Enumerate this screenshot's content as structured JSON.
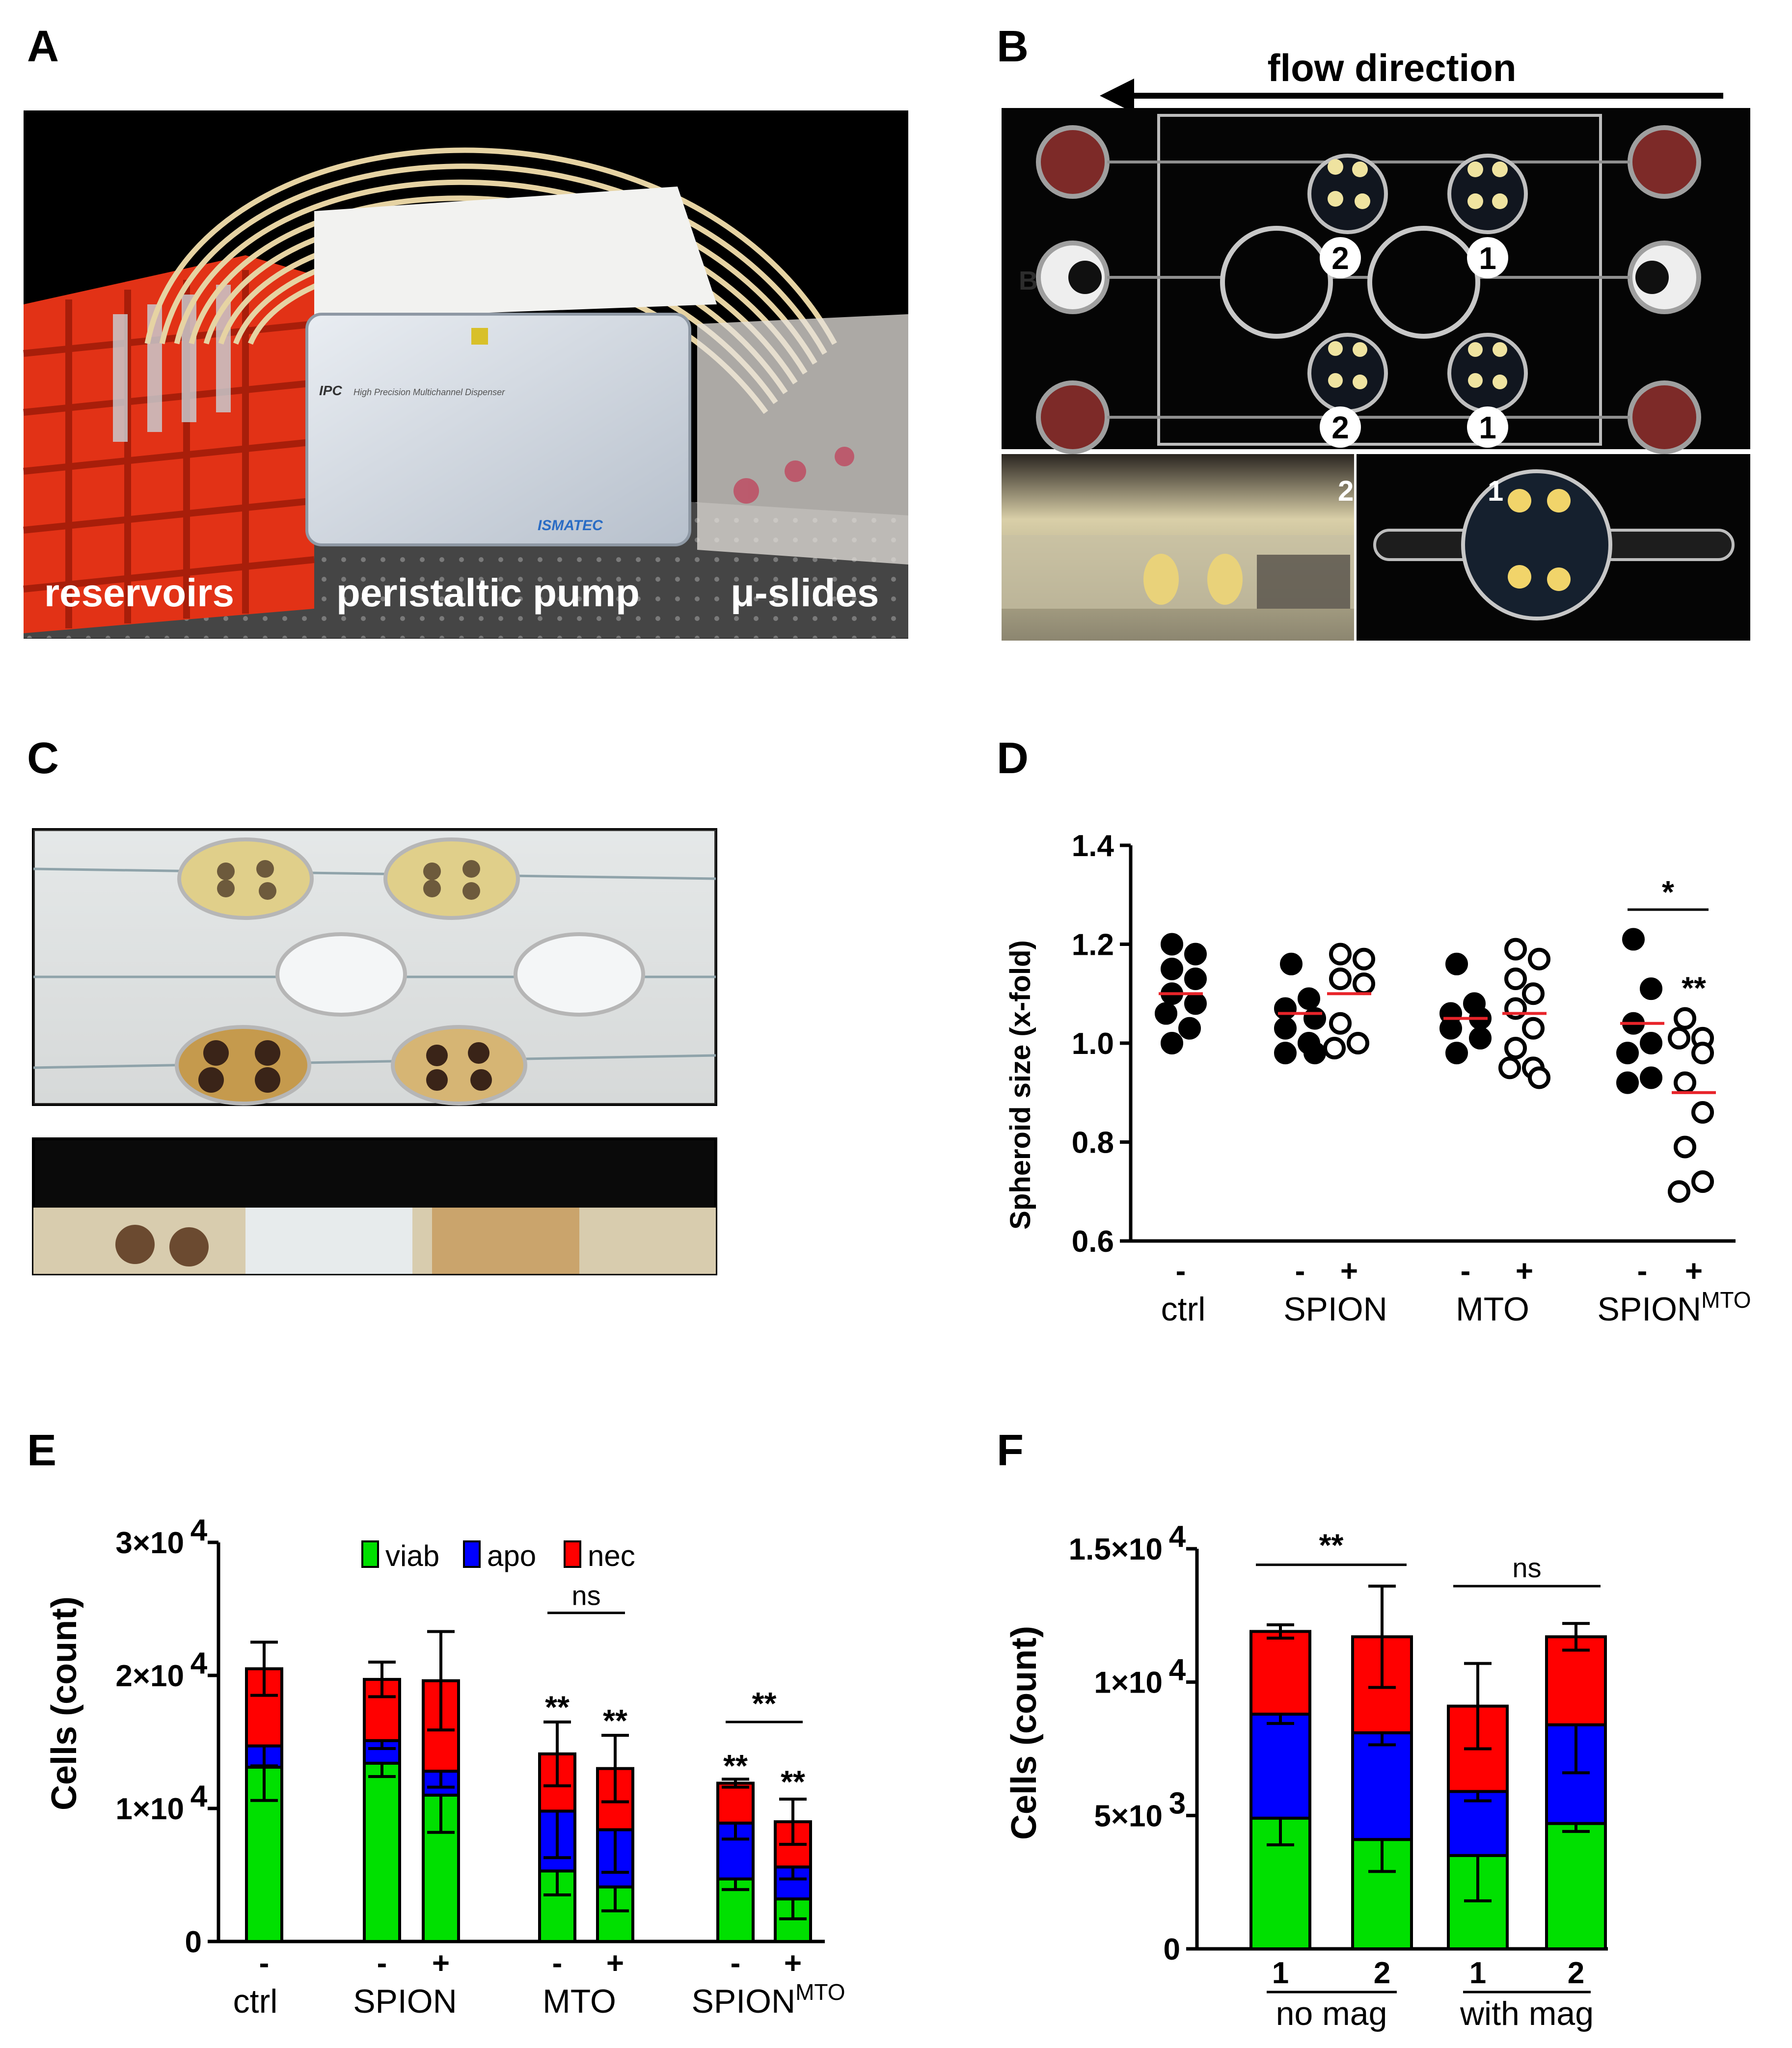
{
  "panels": {
    "A": {
      "label": "A",
      "captions": [
        "reservoirs",
        "peristaltic pump",
        "μ-slides"
      ],
      "pump_brand": "ISMATEC",
      "pump_model": "IPC",
      "pump_desc": "High Precision Multichannel Dispenser"
    },
    "B": {
      "label": "B",
      "flow_label": "flow direction",
      "channel_numbers": [
        "2",
        "1",
        "2",
        "1"
      ],
      "inset_numbers": [
        "2",
        "1"
      ],
      "row_letter": "B"
    },
    "C": {
      "label": "C"
    },
    "D": {
      "label": "D"
    },
    "E": {
      "label": "E"
    },
    "F": {
      "label": "F"
    }
  },
  "colors": {
    "viab": "#00e000",
    "apo": "#0000ff",
    "nec": "#ff0000",
    "mean": "#e8242a"
  },
  "chart_data": [
    {
      "id": "D",
      "type": "scatter",
      "ylabel": "Spheroid size (x-fold)",
      "ylim": [
        0.6,
        1.4
      ],
      "yticks": [
        "0.6",
        "0.8",
        "1.0",
        "1.2",
        "1.4"
      ],
      "groups": [
        {
          "label": "ctrl",
          "sup": ""
        },
        {
          "label": "SPION",
          "sup": ""
        },
        {
          "label": "MTO",
          "sup": ""
        },
        {
          "label": "SPION",
          "sup": "MTO"
        }
      ],
      "sub_labels": [
        "-",
        "-",
        "+",
        "-",
        "+",
        "-",
        "+"
      ],
      "series": [
        {
          "group": 0,
          "sign": "-",
          "filled": true,
          "mean": 1.1,
          "values": [
            1.2,
            1.18,
            1.15,
            1.13,
            1.1,
            1.08,
            1.06,
            1.03,
            1.0
          ]
        },
        {
          "group": 1,
          "sign": "-",
          "filled": true,
          "mean": 1.06,
          "values": [
            1.16,
            1.09,
            1.07,
            1.05,
            1.03,
            1.0,
            0.98,
            0.98
          ]
        },
        {
          "group": 1,
          "sign": "+",
          "filled": false,
          "mean": 1.1,
          "values": [
            1.18,
            1.17,
            1.13,
            1.12,
            1.04,
            1.0,
            0.99
          ]
        },
        {
          "group": 2,
          "sign": "-",
          "filled": true,
          "mean": 1.05,
          "values": [
            1.16,
            1.08,
            1.06,
            1.05,
            1.03,
            1.01,
            0.98
          ]
        },
        {
          "group": 2,
          "sign": "+",
          "filled": false,
          "mean": 1.06,
          "values": [
            1.19,
            1.17,
            1.13,
            1.1,
            1.07,
            1.03,
            0.99,
            0.95,
            0.95,
            0.93
          ]
        },
        {
          "group": 3,
          "sign": "-",
          "filled": true,
          "mean": 1.04,
          "values": [
            1.21,
            1.11,
            1.04,
            1.0,
            0.98,
            0.93,
            0.92
          ]
        },
        {
          "group": 3,
          "sign": "+",
          "filled": false,
          "mean": 0.9,
          "values": [
            1.05,
            1.01,
            1.01,
            0.98,
            0.92,
            0.86,
            0.79,
            0.72,
            0.7
          ]
        }
      ],
      "annotations": [
        {
          "text": "*",
          "type": "bracket",
          "from": 5,
          "to": 6,
          "y": 1.27
        },
        {
          "text": "**",
          "type": "mark",
          "at": 6,
          "y": 1.09
        }
      ]
    },
    {
      "id": "E",
      "type": "bar",
      "stacked": true,
      "ylabel": "Cells (count)",
      "ylim": [
        0,
        30000
      ],
      "yticks": [
        {
          "v": 0,
          "mant": "0",
          "exp": ""
        },
        {
          "v": 10000,
          "mant": "1×10",
          "exp": "4"
        },
        {
          "v": 20000,
          "mant": "2×10",
          "exp": "4"
        },
        {
          "v": 30000,
          "mant": "3×10",
          "exp": "4"
        }
      ],
      "legend": [
        "viab",
        "apo",
        "nec"
      ],
      "groups": [
        {
          "label": "ctrl",
          "sup": ""
        },
        {
          "label": "SPION",
          "sup": ""
        },
        {
          "label": "MTO",
          "sup": ""
        },
        {
          "label": "SPION",
          "sup": "MTO"
        }
      ],
      "sub_labels": [
        "-",
        "-",
        "+",
        "-",
        "+",
        "-",
        "+"
      ],
      "bars": [
        {
          "group": 0,
          "sign": "-",
          "viab": 13100,
          "apo": 1600,
          "nec": 5800,
          "err": [
            2500,
            1500,
            2000
          ]
        },
        {
          "group": 1,
          "sign": "-",
          "viab": 13400,
          "apo": 1700,
          "nec": 4600,
          "err": [
            1000,
            600,
            1300
          ]
        },
        {
          "group": 1,
          "sign": "+",
          "viab": 11000,
          "apo": 1800,
          "nec": 6800,
          "err": [
            2800,
            1200,
            3700
          ]
        },
        {
          "group": 2,
          "sign": "-",
          "viab": 5300,
          "apo": 4500,
          "nec": 4300,
          "err": [
            1800,
            3500,
            2400
          ]
        },
        {
          "group": 2,
          "sign": "+",
          "viab": 4100,
          "apo": 4300,
          "nec": 4600,
          "err": [
            1800,
            3200,
            2500
          ]
        },
        {
          "group": 3,
          "sign": "-",
          "viab": 4700,
          "apo": 4200,
          "nec": 3000,
          "err": [
            800,
            1200,
            300
          ]
        },
        {
          "group": 3,
          "sign": "+",
          "viab": 3200,
          "apo": 2400,
          "nec": 3400,
          "err": [
            1500,
            900,
            1700
          ]
        }
      ],
      "annotations": [
        {
          "text": "ns",
          "type": "bracket",
          "from": 3,
          "to": 4,
          "y": 24700
        },
        {
          "text": "**",
          "type": "mark",
          "at": 3,
          "y": 16800
        },
        {
          "text": "**",
          "type": "mark",
          "at": 4,
          "y": 15800
        },
        {
          "text": "**",
          "type": "bracket",
          "from": 5,
          "to": 6,
          "y": 16500
        },
        {
          "text": "**",
          "type": "mark",
          "at": 5,
          "y": 12400
        },
        {
          "text": "**",
          "type": "mark",
          "at": 6,
          "y": 11200
        }
      ]
    },
    {
      "id": "F",
      "type": "bar",
      "stacked": true,
      "ylabel": "Cells (count)",
      "ylim": [
        0,
        15000
      ],
      "yticks": [
        {
          "v": 0,
          "mant": "0",
          "exp": ""
        },
        {
          "v": 5000,
          "mant": "5×10",
          "exp": "3"
        },
        {
          "v": 10000,
          "mant": "1×10",
          "exp": "4"
        },
        {
          "v": 15000,
          "mant": "1.5×10",
          "exp": "4"
        }
      ],
      "groups": [
        {
          "label": "no mag"
        },
        {
          "label": "with mag"
        }
      ],
      "sub_labels": [
        "1",
        "2",
        "1",
        "2"
      ],
      "bars": [
        {
          "group": 0,
          "channel": "1",
          "viab": 4900,
          "apo": 3900,
          "nec": 3100,
          "err": [
            1000,
            350,
            250
          ]
        },
        {
          "group": 0,
          "channel": "2",
          "viab": 4100,
          "apo": 4000,
          "nec": 3600,
          "err": [
            1200,
            450,
            1900
          ]
        },
        {
          "group": 1,
          "channel": "1",
          "viab": 3500,
          "apo": 2400,
          "nec": 3200,
          "err": [
            1700,
            350,
            1600
          ]
        },
        {
          "group": 1,
          "channel": "2",
          "viab": 4700,
          "apo": 3700,
          "nec": 3300,
          "err": [
            300,
            1800,
            500
          ]
        }
      ],
      "annotations": [
        {
          "text": "**",
          "type": "bracket",
          "from": 0,
          "to": 1,
          "y": 14400
        },
        {
          "text": "ns",
          "type": "bracket",
          "from": 2,
          "to": 3,
          "y": 13600
        }
      ]
    }
  ]
}
